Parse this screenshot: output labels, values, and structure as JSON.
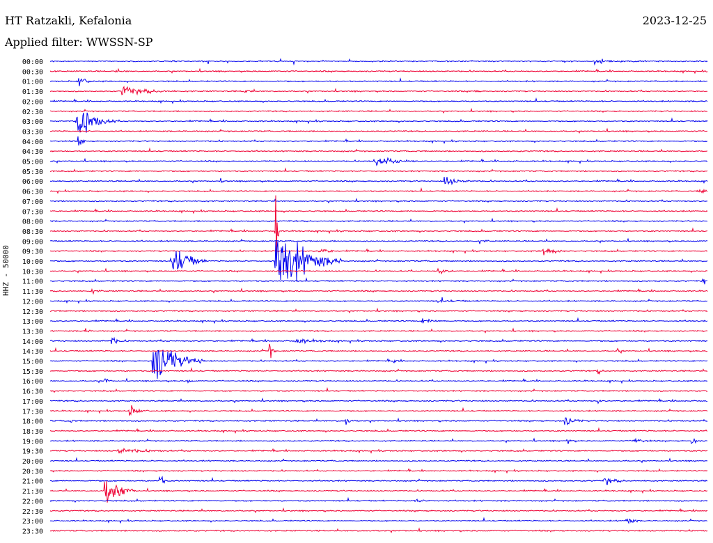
{
  "header": {
    "station": "HT Ratzakli, Kefalonia",
    "date": "2023-12-25",
    "filter": "Applied filter: WWSSN-SP",
    "channel_label": "HHZ - 50000"
  },
  "colors": {
    "even": "#0000ee",
    "odd": "#ee0033"
  },
  "chart_data": {
    "type": "seismogram-helicorder",
    "title": "HT Ratzakli, Kefalonia",
    "date": "2023-12-25",
    "filter": "WWSSN-SP",
    "channel": "HHZ",
    "scale": "50000",
    "row_labels": [
      "00:00",
      "00:30",
      "01:00",
      "01:30",
      "02:00",
      "02:30",
      "03:00",
      "03:30",
      "04:00",
      "04:30",
      "05:00",
      "05:30",
      "06:00",
      "06:30",
      "07:00",
      "07:30",
      "08:00",
      "08:30",
      "09:00",
      "09:30",
      "10:00",
      "10:30",
      "11:00",
      "11:30",
      "12:00",
      "12:30",
      "13:00",
      "13:30",
      "14:00",
      "14:30",
      "15:00",
      "15:30",
      "16:00",
      "16:30",
      "17:00",
      "17:30",
      "18:00",
      "18:30",
      "19:00",
      "19:30",
      "20:00",
      "20:30",
      "21:00",
      "21:30",
      "22:00",
      "22:30",
      "23:00",
      "23:30"
    ],
    "row_colors": "alternating blue (even rows) / red (odd rows)",
    "events": [
      {
        "row": 0,
        "minute": 24.8,
        "amplitude": 4,
        "duration_min": 0.8
      },
      {
        "row": 1,
        "minute": 3.0,
        "amplitude": 2,
        "duration_min": 0.3
      },
      {
        "row": 2,
        "minute": 1.3,
        "amplitude": 18,
        "duration_min": 0.2
      },
      {
        "row": 3,
        "minute": 3.3,
        "amplitude": 12,
        "duration_min": 0.8
      },
      {
        "row": 3,
        "minute": 8.8,
        "amplitude": 6,
        "duration_min": 0.2
      },
      {
        "row": 3,
        "minute": 19.4,
        "amplitude": 4,
        "duration_min": 0.1
      },
      {
        "row": 6,
        "minute": 1.2,
        "amplitude": 45,
        "duration_min": 0.6
      },
      {
        "row": 8,
        "minute": 1.3,
        "amplitude": 30,
        "duration_min": 0.1
      },
      {
        "row": 10,
        "minute": 14.8,
        "amplitude": 12,
        "duration_min": 0.7
      },
      {
        "row": 10,
        "minute": 21.0,
        "amplitude": 3,
        "duration_min": 0.1
      },
      {
        "row": 12,
        "minute": 18.0,
        "amplitude": 12,
        "duration_min": 0.4
      },
      {
        "row": 12,
        "minute": 7.8,
        "amplitude": 3,
        "duration_min": 0.1
      },
      {
        "row": 13,
        "minute": 29.6,
        "amplitude": 5,
        "duration_min": 0.5
      },
      {
        "row": 17,
        "minute": 10.3,
        "amplitude": 190,
        "duration_min": 0.05
      },
      {
        "row": 18,
        "minute": 19.6,
        "amplitude": 5,
        "duration_min": 0.2
      },
      {
        "row": 19,
        "minute": 12.3,
        "amplitude": 8,
        "duration_min": 0.3
      },
      {
        "row": 19,
        "minute": 22.5,
        "amplitude": 10,
        "duration_min": 0.4
      },
      {
        "row": 20,
        "minute": 5.6,
        "amplitude": 45,
        "duration_min": 0.5
      },
      {
        "row": 20,
        "minute": 10.3,
        "amplitude": 90,
        "duration_min": 1.0
      },
      {
        "row": 21,
        "minute": 17.7,
        "amplitude": 8,
        "duration_min": 0.3
      },
      {
        "row": 22,
        "minute": 29.8,
        "amplitude": 10,
        "duration_min": 0.2
      },
      {
        "row": 23,
        "minute": 1.9,
        "amplitude": 6,
        "duration_min": 0.2
      },
      {
        "row": 24,
        "minute": 17.7,
        "amplitude": 4,
        "duration_min": 0.5
      },
      {
        "row": 26,
        "minute": 17.0,
        "amplitude": 6,
        "duration_min": 0.4
      },
      {
        "row": 27,
        "minute": 1.6,
        "amplitude": 8,
        "duration_min": 0.1
      },
      {
        "row": 28,
        "minute": 11.2,
        "amplitude": 6,
        "duration_min": 0.6
      },
      {
        "row": 28,
        "minute": 2.8,
        "amplitude": 10,
        "duration_min": 0.2
      },
      {
        "row": 29,
        "minute": 10.0,
        "amplitude": 25,
        "duration_min": 0.1
      },
      {
        "row": 29,
        "minute": 25.9,
        "amplitude": 6,
        "duration_min": 0.1
      },
      {
        "row": 30,
        "minute": 4.7,
        "amplitude": 55,
        "duration_min": 0.8
      },
      {
        "row": 30,
        "minute": 15.7,
        "amplitude": 6,
        "duration_min": 0.1
      },
      {
        "row": 31,
        "minute": 25.0,
        "amplitude": 8,
        "duration_min": 0.1
      },
      {
        "row": 32,
        "minute": 2.5,
        "amplitude": 12,
        "duration_min": 0.1
      },
      {
        "row": 32,
        "minute": 6.3,
        "amplitude": 8,
        "duration_min": 0.1
      },
      {
        "row": 34,
        "minute": 25.0,
        "amplitude": 5,
        "duration_min": 0.1
      },
      {
        "row": 35,
        "minute": 3.6,
        "amplitude": 14,
        "duration_min": 0.3
      },
      {
        "row": 36,
        "minute": 0.9,
        "amplitude": 6,
        "duration_min": 0.1
      },
      {
        "row": 36,
        "minute": 13.5,
        "amplitude": 14,
        "duration_min": 0.1
      },
      {
        "row": 36,
        "minute": 23.5,
        "amplitude": 12,
        "duration_min": 0.3
      },
      {
        "row": 38,
        "minute": 23.6,
        "amplitude": 10,
        "duration_min": 0.1
      },
      {
        "row": 38,
        "minute": 26.6,
        "amplitude": 8,
        "duration_min": 0.3
      },
      {
        "row": 38,
        "minute": 29.3,
        "amplitude": 14,
        "duration_min": 0.1
      },
      {
        "row": 39,
        "minute": 3.1,
        "amplitude": 6,
        "duration_min": 0.8
      },
      {
        "row": 42,
        "minute": 5.0,
        "amplitude": 25,
        "duration_min": 0.1
      },
      {
        "row": 42,
        "minute": 25.3,
        "amplitude": 12,
        "duration_min": 0.3
      },
      {
        "row": 43,
        "minute": 2.5,
        "amplitude": 40,
        "duration_min": 0.5
      },
      {
        "row": 44,
        "minute": 16.7,
        "amplitude": 5,
        "duration_min": 0.3
      },
      {
        "row": 46,
        "minute": 26.3,
        "amplitude": 12,
        "duration_min": 0.2
      }
    ]
  }
}
